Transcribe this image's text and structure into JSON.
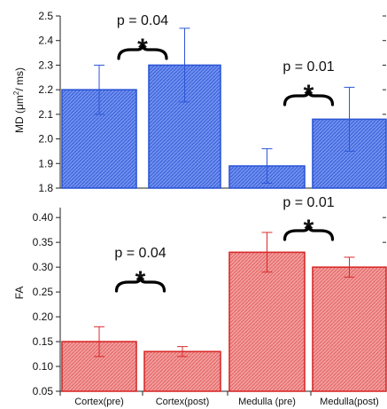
{
  "chart_data": [
    {
      "type": "bar",
      "categories": [
        "Cortex(pre)",
        "Cortex(post)",
        "Medulla (pre)",
        "Medulla(post)"
      ],
      "values": [
        2.2,
        2.3,
        1.89,
        2.08
      ],
      "errors": [
        0.1,
        0.15,
        0.07,
        0.13
      ],
      "ylabel_main": "MD (μm",
      "ylabel_sup": "2",
      "ylabel_tail": "/ ms)",
      "ylim": [
        1.8,
        2.5
      ],
      "yticks": [
        "1.8",
        "1.9",
        "2.0",
        "2.1",
        "2.2",
        "2.3",
        "2.4",
        "2.5"
      ],
      "color": "#3b66d8",
      "annotations": [
        {
          "label": "p = 0.04",
          "star": "*",
          "bars": [
            0,
            1
          ]
        },
        {
          "label": "p = 0.01",
          "star": "*",
          "bars": [
            2,
            3
          ]
        }
      ]
    },
    {
      "type": "bar",
      "categories": [
        "Cortex(pre)",
        "Cortex(post)",
        "Medulla (pre)",
        "Medulla(post)"
      ],
      "values": [
        0.15,
        0.13,
        0.33,
        0.3
      ],
      "errors": [
        0.03,
        0.01,
        0.04,
        0.02
      ],
      "ylabel": "FA",
      "ylim": [
        0.05,
        0.42
      ],
      "yticks": [
        "0.05",
        "0.10",
        "0.15",
        "0.20",
        "0.25",
        "0.30",
        "0.35",
        "0.40"
      ],
      "color": "#e03c3c",
      "annotations": [
        {
          "label": "p = 0.04",
          "star": "*",
          "bars": [
            0,
            1
          ]
        },
        {
          "label": "p = 0.01",
          "star": "*",
          "bars": [
            2,
            3
          ]
        }
      ]
    }
  ]
}
